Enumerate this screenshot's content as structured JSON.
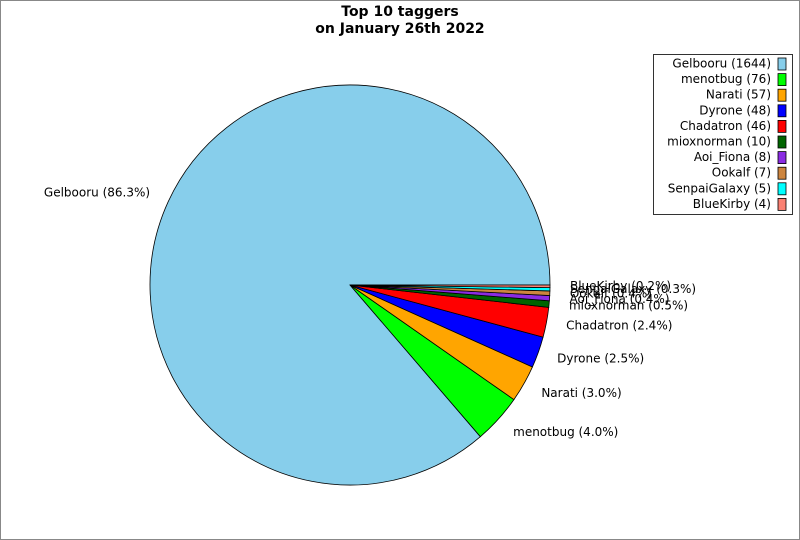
{
  "chart_data": {
    "type": "pie",
    "title": [
      "Top 10 taggers",
      "on January 26th 2022"
    ],
    "categories": [
      "Gelbooru",
      "menotbug",
      "Narati",
      "Dyrone",
      "Chadatron",
      "mioxnorman",
      "Aoi_Fiona",
      "Ookalf",
      "SenpaiGalaxy",
      "BlueKirby"
    ],
    "values": [
      1644,
      76,
      57,
      48,
      46,
      10,
      8,
      7,
      5,
      4
    ],
    "value_labels": [
      "Gelbooru (86.3%)",
      "menotbug (4.0%)",
      "Narati (3.0%)",
      "Dyrone (2.5%)",
      "Chadatron (2.4%)",
      "mioxnorman (0.5%)",
      "Aoi_Fiona (0.4%)",
      "Ookalf (0.4%)",
      "SenpaiGalaxy (0.3%)",
      "BlueKirby (0.2%)"
    ],
    "legend_labels": [
      "Gelbooru (1644)",
      "menotbug (76)",
      "Narati (57)",
      "Dyrone (48)",
      "Chadatron (46)",
      "mioxnorman (10)",
      "Aoi_Fiona (8)",
      "Ookalf (7)",
      "SenpaiGalaxy (5)",
      "BlueKirby (4)"
    ],
    "colors": [
      "#87ceeb",
      "#00ff00",
      "#ffa500",
      "#0000ff",
      "#ff0000",
      "#006400",
      "#8a2be2",
      "#cd853f",
      "#00ffff",
      "#fa8072"
    ],
    "legend": "upper right"
  }
}
